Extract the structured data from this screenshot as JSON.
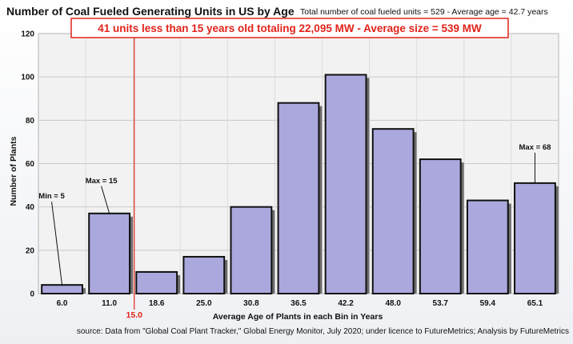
{
  "chart_data": {
    "type": "bar",
    "title": "Number of Coal Fueled Generating Units in US by Age",
    "subtitle": "Total number of coal fueled units = 529  - Average age = 42.7  years",
    "banner": "41 units less than 15 years old totaling 22,095 MW  -  Average size = 539 MW",
    "xlabel": "Average Age of Plants in each Bin in Years",
    "ylabel": "Number of Plants",
    "categories": [
      "6.0",
      "11.0",
      "18.6",
      "25.0",
      "30.8",
      "36.5",
      "42.2",
      "48.0",
      "53.7",
      "59.4",
      "65.1"
    ],
    "values": [
      4,
      37,
      10,
      17,
      40,
      88,
      101,
      76,
      62,
      43,
      51
    ],
    "ylim": [
      0,
      120
    ],
    "yticks": [
      0,
      20,
      40,
      60,
      80,
      100,
      120
    ],
    "grid": true,
    "legend": "none",
    "reference_line": {
      "value": 15.0,
      "label": "15.0",
      "color": "#e2231a"
    },
    "annotations": [
      {
        "text": "Min = 5",
        "category": "6.0"
      },
      {
        "text": "Max = 15",
        "category": "11.0"
      },
      {
        "text": "Max = 68",
        "category": "65.1"
      }
    ],
    "source": "source: Data from \"Global Coal Plant Tracker,\" Global Energy Monitor, July 2020;  under licence to FutureMetrics; Analysis by FutureMetrics",
    "colors": {
      "bar": "#aaa8dc",
      "bar_edge": "#111111",
      "bar_shadow": "#6d6d6d",
      "reference": "#e2231a",
      "plot_bg": "#f2f2f2",
      "grid": "#c8c8c8"
    }
  }
}
